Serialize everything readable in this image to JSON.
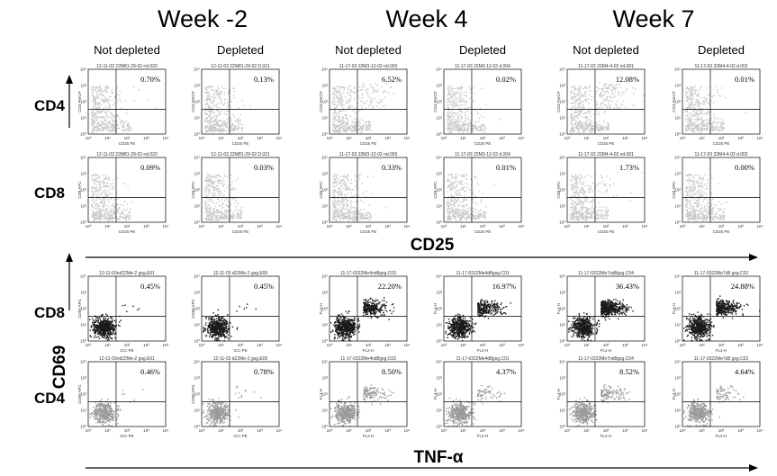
{
  "header": {
    "weeks": [
      "Week -2",
      "Week 4",
      "Week 7"
    ],
    "conditions": [
      "Not depleted",
      "Depleted",
      "Not depleted",
      "Depleted",
      "Not depleted",
      "Depleted"
    ]
  },
  "block_labels": {
    "top_marker": "CD25",
    "bottom_marker": "TNF-α",
    "bottom_y_marker": "CD69"
  },
  "chart_data": {
    "type": "scatter",
    "rows": [
      {
        "label": "CD4",
        "panels": [
          {
            "file": "12-11-03 22M81-29-02 nd.020",
            "percent": "0.70%",
            "xlabel": "CD25 PE",
            "ylabel": "CD4 PerCP",
            "style": "light"
          },
          {
            "file": "12-11-03 22M81-29-02 D.021",
            "percent": "0.13%",
            "xlabel": "CD25 PE",
            "ylabel": "CD4 PerCP",
            "style": "light"
          },
          {
            "file": "11-17-03 22M3-12-02 nd.003",
            "percent": "6.52%",
            "xlabel": "CD25 PE",
            "ylabel": "CD4 PerCP",
            "style": "light"
          },
          {
            "file": "11-17-03 22M3-12-02 d.004",
            "percent": "0.02%",
            "xlabel": "CD25 PE",
            "ylabel": "CD4 PerCP",
            "style": "light"
          },
          {
            "file": "11-17-03 22M4-4-02 nd.001",
            "percent": "12.08%",
            "xlabel": "CD25 PE",
            "ylabel": "CD4 PerCP",
            "style": "light"
          },
          {
            "file": "11-17-03 22M4-4-02 d.002",
            "percent": "0.01%",
            "xlabel": "CD25 PE",
            "ylabel": "CD4 PerCP",
            "style": "light"
          }
        ]
      },
      {
        "label": "CD8",
        "panels": [
          {
            "file": "12-11-03 22M81-29-02 nd.020",
            "percent": "0.09%",
            "xlabel": "CD25 PE",
            "ylabel": "CD8 APC",
            "style": "light"
          },
          {
            "file": "12-11-03 22M81-29-02 D.021",
            "percent": "0.03%",
            "xlabel": "CD25 PE",
            "ylabel": "CD8 APC",
            "style": "light"
          },
          {
            "file": "11-17-03 22M3-12-02 nd.003",
            "percent": "0.33%",
            "xlabel": "CD25 PE",
            "ylabel": "CD8 APC",
            "style": "light"
          },
          {
            "file": "11-17-03 22M3-12-02 d.004",
            "percent": "0.01%",
            "xlabel": "CD25 PE",
            "ylabel": "CD8 APC",
            "style": "light"
          },
          {
            "file": "11-17-03 22M4-4-02 nd.001",
            "percent": "1.73%",
            "xlabel": "CD25 PE",
            "ylabel": "CD8 APC",
            "style": "light"
          },
          {
            "file": "11-17-03 22M4-4-02 d.002",
            "percent": "0.00%",
            "xlabel": "CD25 PE",
            "ylabel": "CD8 APC",
            "style": "light"
          }
        ]
      },
      {
        "label": "CD8",
        "panels": [
          {
            "file": "12-11-03nd22Me-2 gsg.E01",
            "percent": "0.45%",
            "xlabel": "ICC-PE",
            "ylabel": "CD69 APC",
            "style": "dark"
          },
          {
            "file": "12-11-03 d22Me-2 gsg.E05",
            "percent": "0.45%",
            "xlabel": "ICC-PE",
            "ylabel": "CD69 APC",
            "style": "dark"
          },
          {
            "file": "11-17-0322Me4nd8gsg.C03",
            "percent": "22.20%",
            "xlabel": "FL2-H",
            "ylabel": "FL4-H",
            "style": "dark"
          },
          {
            "file": "11-17-0322Me4d8gsg.C01",
            "percent": "16.97%",
            "xlabel": "FL2-H",
            "ylabel": "FL4-H",
            "style": "dark"
          },
          {
            "file": "11-17-0322Me7nd8gsg.C04",
            "percent": "36.43%",
            "xlabel": "FL2-H",
            "ylabel": "FL4-H",
            "style": "dark"
          },
          {
            "file": "11-17-0322Me7d8 gsg.C02",
            "percent": "24.88%",
            "xlabel": "FL2-H",
            "ylabel": "FL4-H",
            "style": "dark"
          }
        ]
      },
      {
        "label": "CD4",
        "panels": [
          {
            "file": "12-11-03nd22Me-2 gsg.E01",
            "percent": "0.46%",
            "xlabel": "ICC-PE",
            "ylabel": "CD69 APC",
            "style": "grey"
          },
          {
            "file": "12-11-03 d22Me-2 gsg.E05",
            "percent": "0.78%",
            "xlabel": "ICC-PE",
            "ylabel": "CD69 APC",
            "style": "grey"
          },
          {
            "file": "11-17-0322Me4nd8gsg.C03",
            "percent": "8.50%",
            "xlabel": "FL2-H",
            "ylabel": "FL4-H",
            "style": "grey"
          },
          {
            "file": "11-17-0322Me4d8gsg.C01",
            "percent": "4.37%",
            "xlabel": "FL2-H",
            "ylabel": "FL4-H",
            "style": "grey"
          },
          {
            "file": "11-17-0322Me7nd8gsg.C04",
            "percent": "8.52%",
            "xlabel": "FL2-H",
            "ylabel": "FL4-H",
            "style": "grey"
          },
          {
            "file": "11-17-0322Me7d8 gsg.C02",
            "percent": "4.64%",
            "xlabel": "FL2-H",
            "ylabel": "FL4-H",
            "style": "grey"
          }
        ]
      }
    ],
    "x_ticks": [
      "10⁰",
      "10¹",
      "10²",
      "10³",
      "10⁴"
    ],
    "y_ticks": [
      "10⁰",
      "10¹",
      "10²",
      "10³",
      "10⁴"
    ],
    "x_scale": "log",
    "y_scale": "log",
    "colors": {
      "light": "#c8c8c8",
      "dark": "#1a1a1a",
      "grey": "#9a9a9a"
    }
  }
}
